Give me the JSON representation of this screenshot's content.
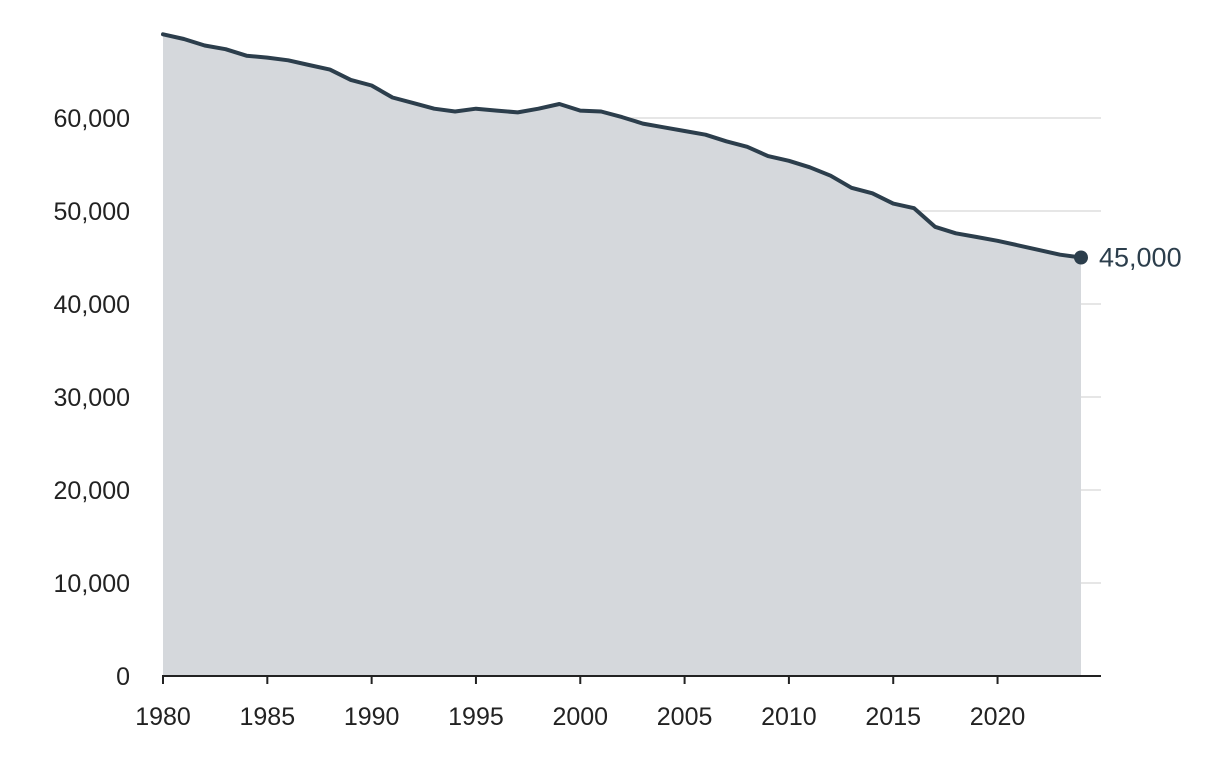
{
  "chart_data": {
    "type": "area",
    "title": "",
    "xlabel": "",
    "ylabel": "",
    "xlim": [
      1980,
      2024
    ],
    "ylim": [
      0,
      70000
    ],
    "grid": true,
    "colors": {
      "line": "#2c3e4c",
      "fill": "#d5d8dc",
      "grid": "#dddddd",
      "axis": "#222222",
      "text": "#222222"
    },
    "x_ticks": [
      1980,
      1985,
      1990,
      1995,
      2000,
      2005,
      2010,
      2015,
      2020
    ],
    "x_tick_labels": [
      "1980",
      "1985",
      "1990",
      "1995",
      "2000",
      "2005",
      "2010",
      "2015",
      "2020"
    ],
    "y_ticks": [
      0,
      10000,
      20000,
      30000,
      40000,
      50000,
      60000
    ],
    "y_tick_labels": [
      "0",
      "10,000",
      "20,000",
      "30,000",
      "40,000",
      "50,000",
      "60,000"
    ],
    "x": [
      1980,
      1981,
      1982,
      1983,
      1984,
      1985,
      1986,
      1987,
      1988,
      1989,
      1990,
      1991,
      1992,
      1993,
      1994,
      1995,
      1996,
      1997,
      1998,
      1999,
      2000,
      2001,
      2002,
      2003,
      2004,
      2005,
      2006,
      2007,
      2008,
      2009,
      2010,
      2011,
      2012,
      2013,
      2014,
      2015,
      2016,
      2017,
      2018,
      2019,
      2020,
      2021,
      2022,
      2023,
      2024
    ],
    "values": [
      69000,
      68500,
      67800,
      67400,
      66700,
      66500,
      66200,
      65700,
      65200,
      64100,
      63500,
      62200,
      61600,
      61000,
      60700,
      61000,
      60800,
      60600,
      61000,
      61500,
      60800,
      60700,
      60100,
      59400,
      59000,
      58600,
      58200,
      57500,
      56900,
      55900,
      55400,
      54700,
      53800,
      52500,
      51900,
      50800,
      50300,
      48300,
      47600,
      47200,
      46800,
      46300,
      45800,
      45300,
      45000
    ],
    "end_label": "45,000"
  }
}
